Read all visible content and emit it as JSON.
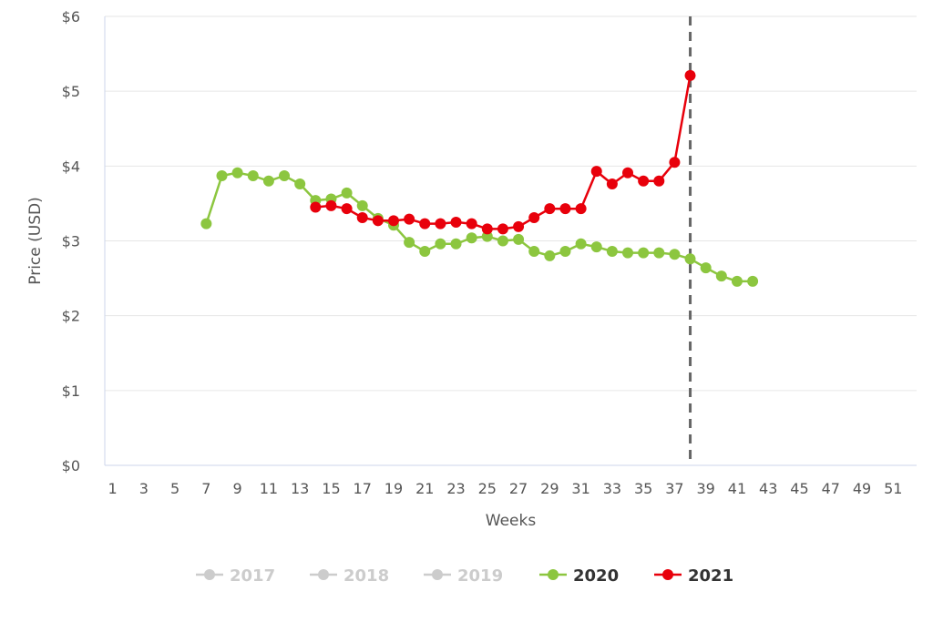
{
  "chart_data": {
    "type": "line",
    "xlabel": "Weeks",
    "ylabel": "Price (USD)",
    "xlim": [
      1,
      52
    ],
    "ylim": [
      0,
      6
    ],
    "x_ticks": [
      "1",
      "3",
      "5",
      "7",
      "9",
      "11",
      "13",
      "15",
      "17",
      "19",
      "21",
      "23",
      "25",
      "27",
      "29",
      "31",
      "33",
      "35",
      "37",
      "39",
      "41",
      "43",
      "45",
      "47",
      "49",
      "51"
    ],
    "y_ticks": [
      "$0",
      "$1",
      "$2",
      "$3",
      "$4",
      "$5",
      "$6"
    ],
    "grid": "horizontal",
    "legend_position": "bottom",
    "reference_line": {
      "x": 38,
      "style": "dashed",
      "color": "#666666"
    },
    "series": [
      {
        "name": "2017",
        "color": "#cccccc",
        "visible": false,
        "points": []
      },
      {
        "name": "2018",
        "color": "#cccccc",
        "visible": false,
        "points": []
      },
      {
        "name": "2019",
        "color": "#cccccc",
        "visible": false,
        "points": []
      },
      {
        "name": "2020",
        "color": "#8cc63f",
        "visible": true,
        "points": [
          [
            7,
            3.23
          ],
          [
            8,
            3.87
          ],
          [
            9,
            3.91
          ],
          [
            10,
            3.87
          ],
          [
            11,
            3.8
          ],
          [
            12,
            3.87
          ],
          [
            13,
            3.76
          ],
          [
            14,
            3.54
          ],
          [
            15,
            3.56
          ],
          [
            16,
            3.64
          ],
          [
            17,
            3.47
          ],
          [
            18,
            3.3
          ],
          [
            19,
            3.21
          ],
          [
            20,
            2.98
          ],
          [
            21,
            2.86
          ],
          [
            22,
            2.96
          ],
          [
            23,
            2.96
          ],
          [
            24,
            3.04
          ],
          [
            25,
            3.06
          ],
          [
            26,
            3.0
          ],
          [
            27,
            3.02
          ],
          [
            28,
            2.86
          ],
          [
            29,
            2.8
          ],
          [
            30,
            2.86
          ],
          [
            31,
            2.96
          ],
          [
            32,
            2.92
          ],
          [
            33,
            2.86
          ],
          [
            34,
            2.84
          ],
          [
            35,
            2.84
          ],
          [
            36,
            2.84
          ],
          [
            37,
            2.82
          ],
          [
            38,
            2.76
          ],
          [
            39,
            2.64
          ],
          [
            40,
            2.53
          ],
          [
            41,
            2.46
          ],
          [
            42,
            2.46
          ]
        ]
      },
      {
        "name": "2021",
        "color": "#e8000b",
        "visible": true,
        "points": [
          [
            14,
            3.45
          ],
          [
            15,
            3.47
          ],
          [
            16,
            3.43
          ],
          [
            17,
            3.31
          ],
          [
            18,
            3.27
          ],
          [
            19,
            3.27
          ],
          [
            20,
            3.29
          ],
          [
            21,
            3.23
          ],
          [
            22,
            3.23
          ],
          [
            23,
            3.25
          ],
          [
            24,
            3.23
          ],
          [
            25,
            3.16
          ],
          [
            26,
            3.16
          ],
          [
            27,
            3.19
          ],
          [
            28,
            3.31
          ],
          [
            29,
            3.43
          ],
          [
            30,
            3.43
          ],
          [
            31,
            3.43
          ],
          [
            32,
            3.93
          ],
          [
            33,
            3.76
          ],
          [
            34,
            3.91
          ],
          [
            35,
            3.8
          ],
          [
            36,
            3.8
          ],
          [
            37,
            4.05
          ],
          [
            38,
            5.21
          ]
        ]
      }
    ]
  }
}
